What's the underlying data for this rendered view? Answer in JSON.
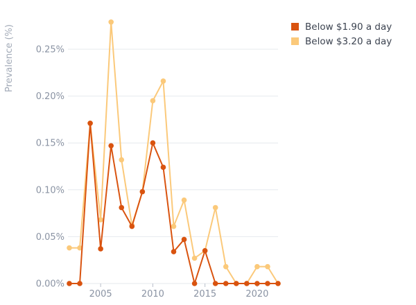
{
  "chart_data": {
    "type": "line",
    "ylabel": "Prevalence (%)",
    "xlabel": "",
    "x": [
      2002,
      2003,
      2004,
      2005,
      2006,
      2007,
      2008,
      2009,
      2010,
      2011,
      2012,
      2013,
      2014,
      2015,
      2016,
      2017,
      2018,
      2019,
      2020,
      2021,
      2022
    ],
    "xticks": [
      {
        "value": 2005,
        "label": "2005"
      },
      {
        "value": 2010,
        "label": "2010"
      },
      {
        "value": 2015,
        "label": "2015"
      },
      {
        "value": 2020,
        "label": "2020"
      }
    ],
    "xlim": [
      2002,
      2022
    ],
    "ylim": [
      0,
      0.28
    ],
    "yticks": [
      {
        "value": 0,
        "label": "0.00%"
      },
      {
        "value": 0.05,
        "label": "0.05%"
      },
      {
        "value": 0.1,
        "label": "0.10%"
      },
      {
        "value": 0.15,
        "label": "0.15%"
      },
      {
        "value": 0.2,
        "label": "0.20%"
      },
      {
        "value": 0.25,
        "label": "0.25%"
      }
    ],
    "grid": true,
    "legend_position": "top-right",
    "series": [
      {
        "name": "Below $3.20 a day",
        "color": "#fbc97a",
        "values": [
          0.038,
          0.038,
          0.171,
          0.068,
          0.279,
          0.132,
          0.062,
          0.098,
          0.195,
          0.216,
          0.061,
          0.089,
          0.027,
          0.035,
          0.081,
          0.018,
          0,
          0,
          0.018,
          0.018,
          0
        ]
      },
      {
        "name": "Below $1.90 a day",
        "color": "#d9530f",
        "values": [
          0,
          0,
          0.171,
          0.037,
          0.147,
          0.081,
          0.061,
          0.098,
          0.15,
          0.124,
          0.034,
          0.047,
          0,
          0.035,
          0,
          0,
          0,
          0,
          0,
          0,
          0
        ]
      }
    ]
  },
  "legend": {
    "items": [
      {
        "label": "Below $1.90 a day",
        "color": "#d9530f"
      },
      {
        "label": "Below $3.20 a day",
        "color": "#fbc97a"
      }
    ]
  }
}
